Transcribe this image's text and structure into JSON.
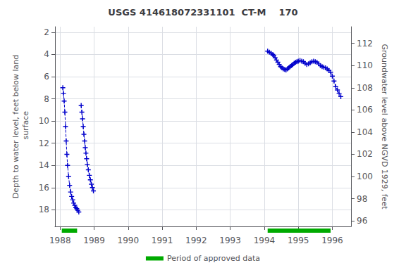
{
  "chart_data": {
    "type": "line",
    "title": "USGS 414618072331101  CT-M    170",
    "ylabel": "Depth to water level, feet below land\n surface",
    "y2label": "Groundwater level above NGVD 1929, feet",
    "xlim": [
      1987.85,
      1996.55
    ],
    "xticks": [
      1988,
      1989,
      1990,
      1991,
      1992,
      1993,
      1994,
      1995,
      1996
    ],
    "ylim": [
      19.5,
      1.5
    ],
    "yticks": [
      2,
      4,
      6,
      8,
      10,
      12,
      14,
      16,
      18
    ],
    "y2lim": [
      95.5,
      113.5
    ],
    "y2ticks": [
      96,
      98,
      100,
      102,
      104,
      106,
      108,
      110,
      112
    ],
    "grid": true,
    "legend": "bottom",
    "series": [
      {
        "color": "#0000cc",
        "line_style": "dashed",
        "marker": "plus",
        "x": [
          1988.08,
          1988.1,
          1988.12,
          1988.14,
          1988.16,
          1988.18,
          1988.2,
          1988.22,
          1988.25,
          1988.28,
          1988.31,
          1988.34,
          1988.37,
          1988.4,
          1988.43,
          1988.46,
          1988.49,
          1988.52,
          1988.55
        ],
        "values": [
          7.0,
          7.5,
          8.2,
          9.2,
          10.5,
          11.8,
          13.0,
          14.0,
          15.0,
          15.8,
          16.4,
          16.8,
          17.1,
          17.4,
          17.6,
          17.8,
          17.9,
          18.05,
          18.2
        ]
      },
      {
        "color": "#0000cc",
        "line_style": "dashed",
        "marker": "plus",
        "x": [
          1988.62,
          1988.64,
          1988.66,
          1988.68,
          1988.7,
          1988.72,
          1988.74,
          1988.76,
          1988.78,
          1988.8,
          1988.83,
          1988.86,
          1988.89,
          1988.92,
          1988.95,
          1988.98
        ],
        "values": [
          8.6,
          9.2,
          9.8,
          10.5,
          11.2,
          11.8,
          12.4,
          12.9,
          13.4,
          13.9,
          14.4,
          14.9,
          15.3,
          15.7,
          16.0,
          16.3
        ]
      },
      {
        "color": "#0000cc",
        "line_style": "dashed",
        "marker": "plus",
        "x": [
          1994.1,
          1994.15,
          1994.2,
          1994.25,
          1994.28,
          1994.32,
          1994.36,
          1994.4,
          1994.44,
          1994.48,
          1994.52,
          1994.56,
          1994.6,
          1994.64,
          1994.68,
          1994.72,
          1994.76,
          1994.8,
          1994.84,
          1994.88,
          1994.92,
          1994.96,
          1995.0,
          1995.05,
          1995.1,
          1995.15,
          1995.2,
          1995.25,
          1995.3,
          1995.35,
          1995.4,
          1995.45,
          1995.5,
          1995.55,
          1995.6,
          1995.65,
          1995.7,
          1995.75,
          1995.8,
          1995.85,
          1995.9,
          1995.95,
          1996.0,
          1996.05,
          1996.1,
          1996.15,
          1996.2,
          1996.25
        ],
        "values": [
          3.7,
          3.8,
          3.9,
          4.0,
          4.1,
          4.3,
          4.5,
          4.7,
          4.9,
          5.1,
          5.2,
          5.3,
          5.35,
          5.4,
          5.3,
          5.2,
          5.1,
          5.0,
          4.9,
          4.8,
          4.7,
          4.65,
          4.6,
          4.55,
          4.6,
          4.65,
          4.8,
          4.9,
          4.85,
          4.75,
          4.65,
          4.6,
          4.65,
          4.7,
          4.85,
          5.0,
          5.1,
          5.15,
          5.2,
          5.3,
          5.45,
          5.6,
          5.95,
          6.4,
          6.9,
          7.2,
          7.5,
          7.8
        ]
      }
    ],
    "approved_periods": {
      "name": "Period of approved data",
      "color": "#00aa00",
      "periods": [
        [
          1988.05,
          1988.5
        ],
        [
          1994.1,
          1995.95
        ]
      ]
    }
  }
}
